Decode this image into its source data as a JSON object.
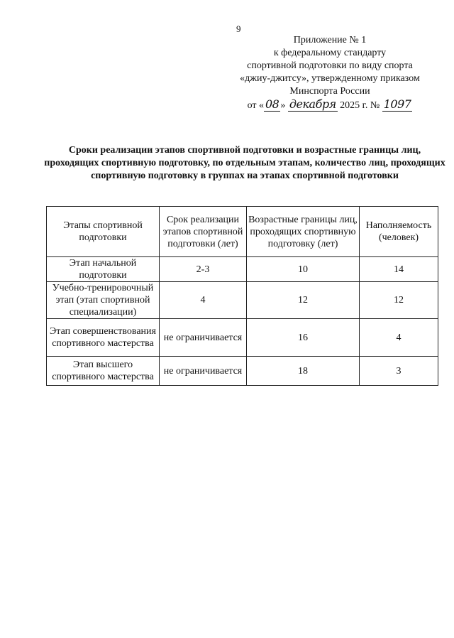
{
  "page_number": "9",
  "annex": {
    "lines": [
      "Приложение № 1",
      "к федеральному стандарту",
      "спортивной подготовки по виду спорта",
      "«джиу-джитсу», утвержденному приказом",
      "Минспорта России"
    ],
    "date_prefix": "от «",
    "date_day": "08",
    "date_mid": "»",
    "date_month": "декабря",
    "date_year": "2025 г. №",
    "order_number": "1097"
  },
  "title": "Сроки реализации этапов спортивной подготовки и возрастные границы лиц, проходящих спортивную подготовку, по отдельным этапам, количество лиц, проходящих спортивную подготовку в группах на этапах спортивной подготовки",
  "table": {
    "headers": [
      "Этапы спортивной подготовки",
      "Срок реализации этапов спортивной подготовки (лет)",
      "Возрастные границы лиц, проходящих спортивную подготовку (лет)",
      "Наполняемость (человек)"
    ],
    "rows": [
      [
        "Этап начальной подготовки",
        "2-3",
        "10",
        "14"
      ],
      [
        "Учебно-тренировочный этап (этап спортивной специализации)",
        "4",
        "12",
        "12"
      ],
      [
        "Этап совершенствования спортивного мастерства",
        "не ограничивается",
        "16",
        "4"
      ],
      [
        "Этап высшего спортивного мастерства",
        "не ограничивается",
        "18",
        "3"
      ]
    ]
  }
}
